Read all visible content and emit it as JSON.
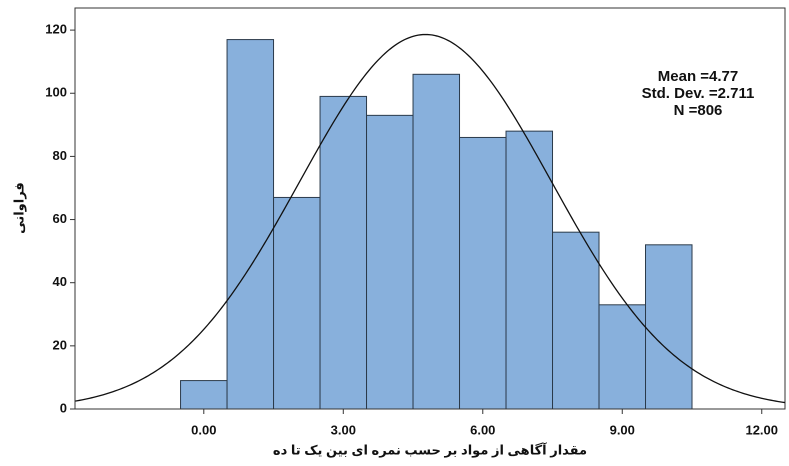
{
  "chart_data": {
    "type": "histogram",
    "x_label": "مقدار آگاهی از مواد بر حسب نمره ای بین یک تا ده",
    "y_label": "فراوانی",
    "bins": [
      -0.5,
      0.5,
      1.5,
      2.5,
      3.5,
      4.5,
      5.5,
      6.5,
      7.5,
      8.5,
      9.5,
      10.5
    ],
    "values": [
      9,
      117,
      67,
      99,
      93,
      106,
      86,
      88,
      56,
      33,
      52
    ],
    "color": "#7ba7d8",
    "edge_color": "#2b3a4a",
    "xlim": [
      -2.77,
      12.5
    ],
    "ylim": [
      0,
      127
    ],
    "xticks": [
      {
        "value": 0,
        "label": "0.00"
      },
      {
        "value": 3,
        "label": "3.00"
      },
      {
        "value": 6,
        "label": "6.00"
      },
      {
        "value": 9,
        "label": "9.00"
      },
      {
        "value": 12,
        "label": "12.00"
      }
    ],
    "yticks": [
      0,
      20,
      40,
      60,
      80,
      100,
      120
    ],
    "stats": [
      {
        "value": 4.77,
        "label": "Mean =4.77"
      },
      {
        "value": 2.711,
        "label": "Std. Dev. =2.711"
      },
      {
        "value": 806,
        "label": "N =806"
      }
    ],
    "normal_curve": true
  }
}
